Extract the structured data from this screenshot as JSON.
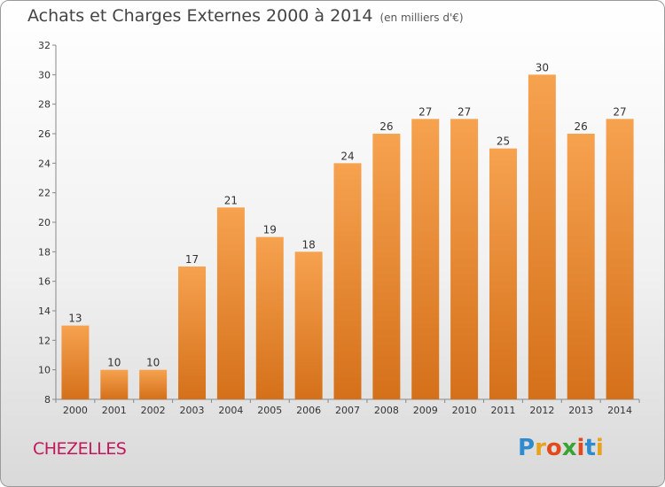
{
  "title": "Achats et Charges Externes 2000 à 2014",
  "subtitle": "(en milliers d'€)",
  "commune": "CHEZELLES",
  "logo": {
    "letters": [
      "P",
      "r",
      "o",
      "x",
      "i",
      "t",
      "i"
    ],
    "colors": [
      "#2e8bcf",
      "#e8a21c",
      "#e24a1c",
      "#3aa335",
      "#e24a1c",
      "#2e8bcf",
      "#e8a21c"
    ]
  },
  "colors": {
    "bar_top": "#f6a24f",
    "bar_bottom": "#d5701a",
    "axis": "#888888"
  },
  "chart_data": {
    "type": "bar",
    "categories": [
      "2000",
      "2001",
      "2002",
      "2003",
      "2004",
      "2005",
      "2006",
      "2007",
      "2008",
      "2009",
      "2010",
      "2011",
      "2012",
      "2013",
      "2014"
    ],
    "values": [
      13,
      10,
      10,
      17,
      21,
      19,
      18,
      24,
      26,
      27,
      27,
      25,
      30,
      26,
      27
    ],
    "yticks": [
      8,
      10,
      12,
      14,
      16,
      18,
      20,
      22,
      24,
      26,
      28,
      30,
      32
    ],
    "ylim": [
      8,
      32
    ],
    "grid": false
  }
}
